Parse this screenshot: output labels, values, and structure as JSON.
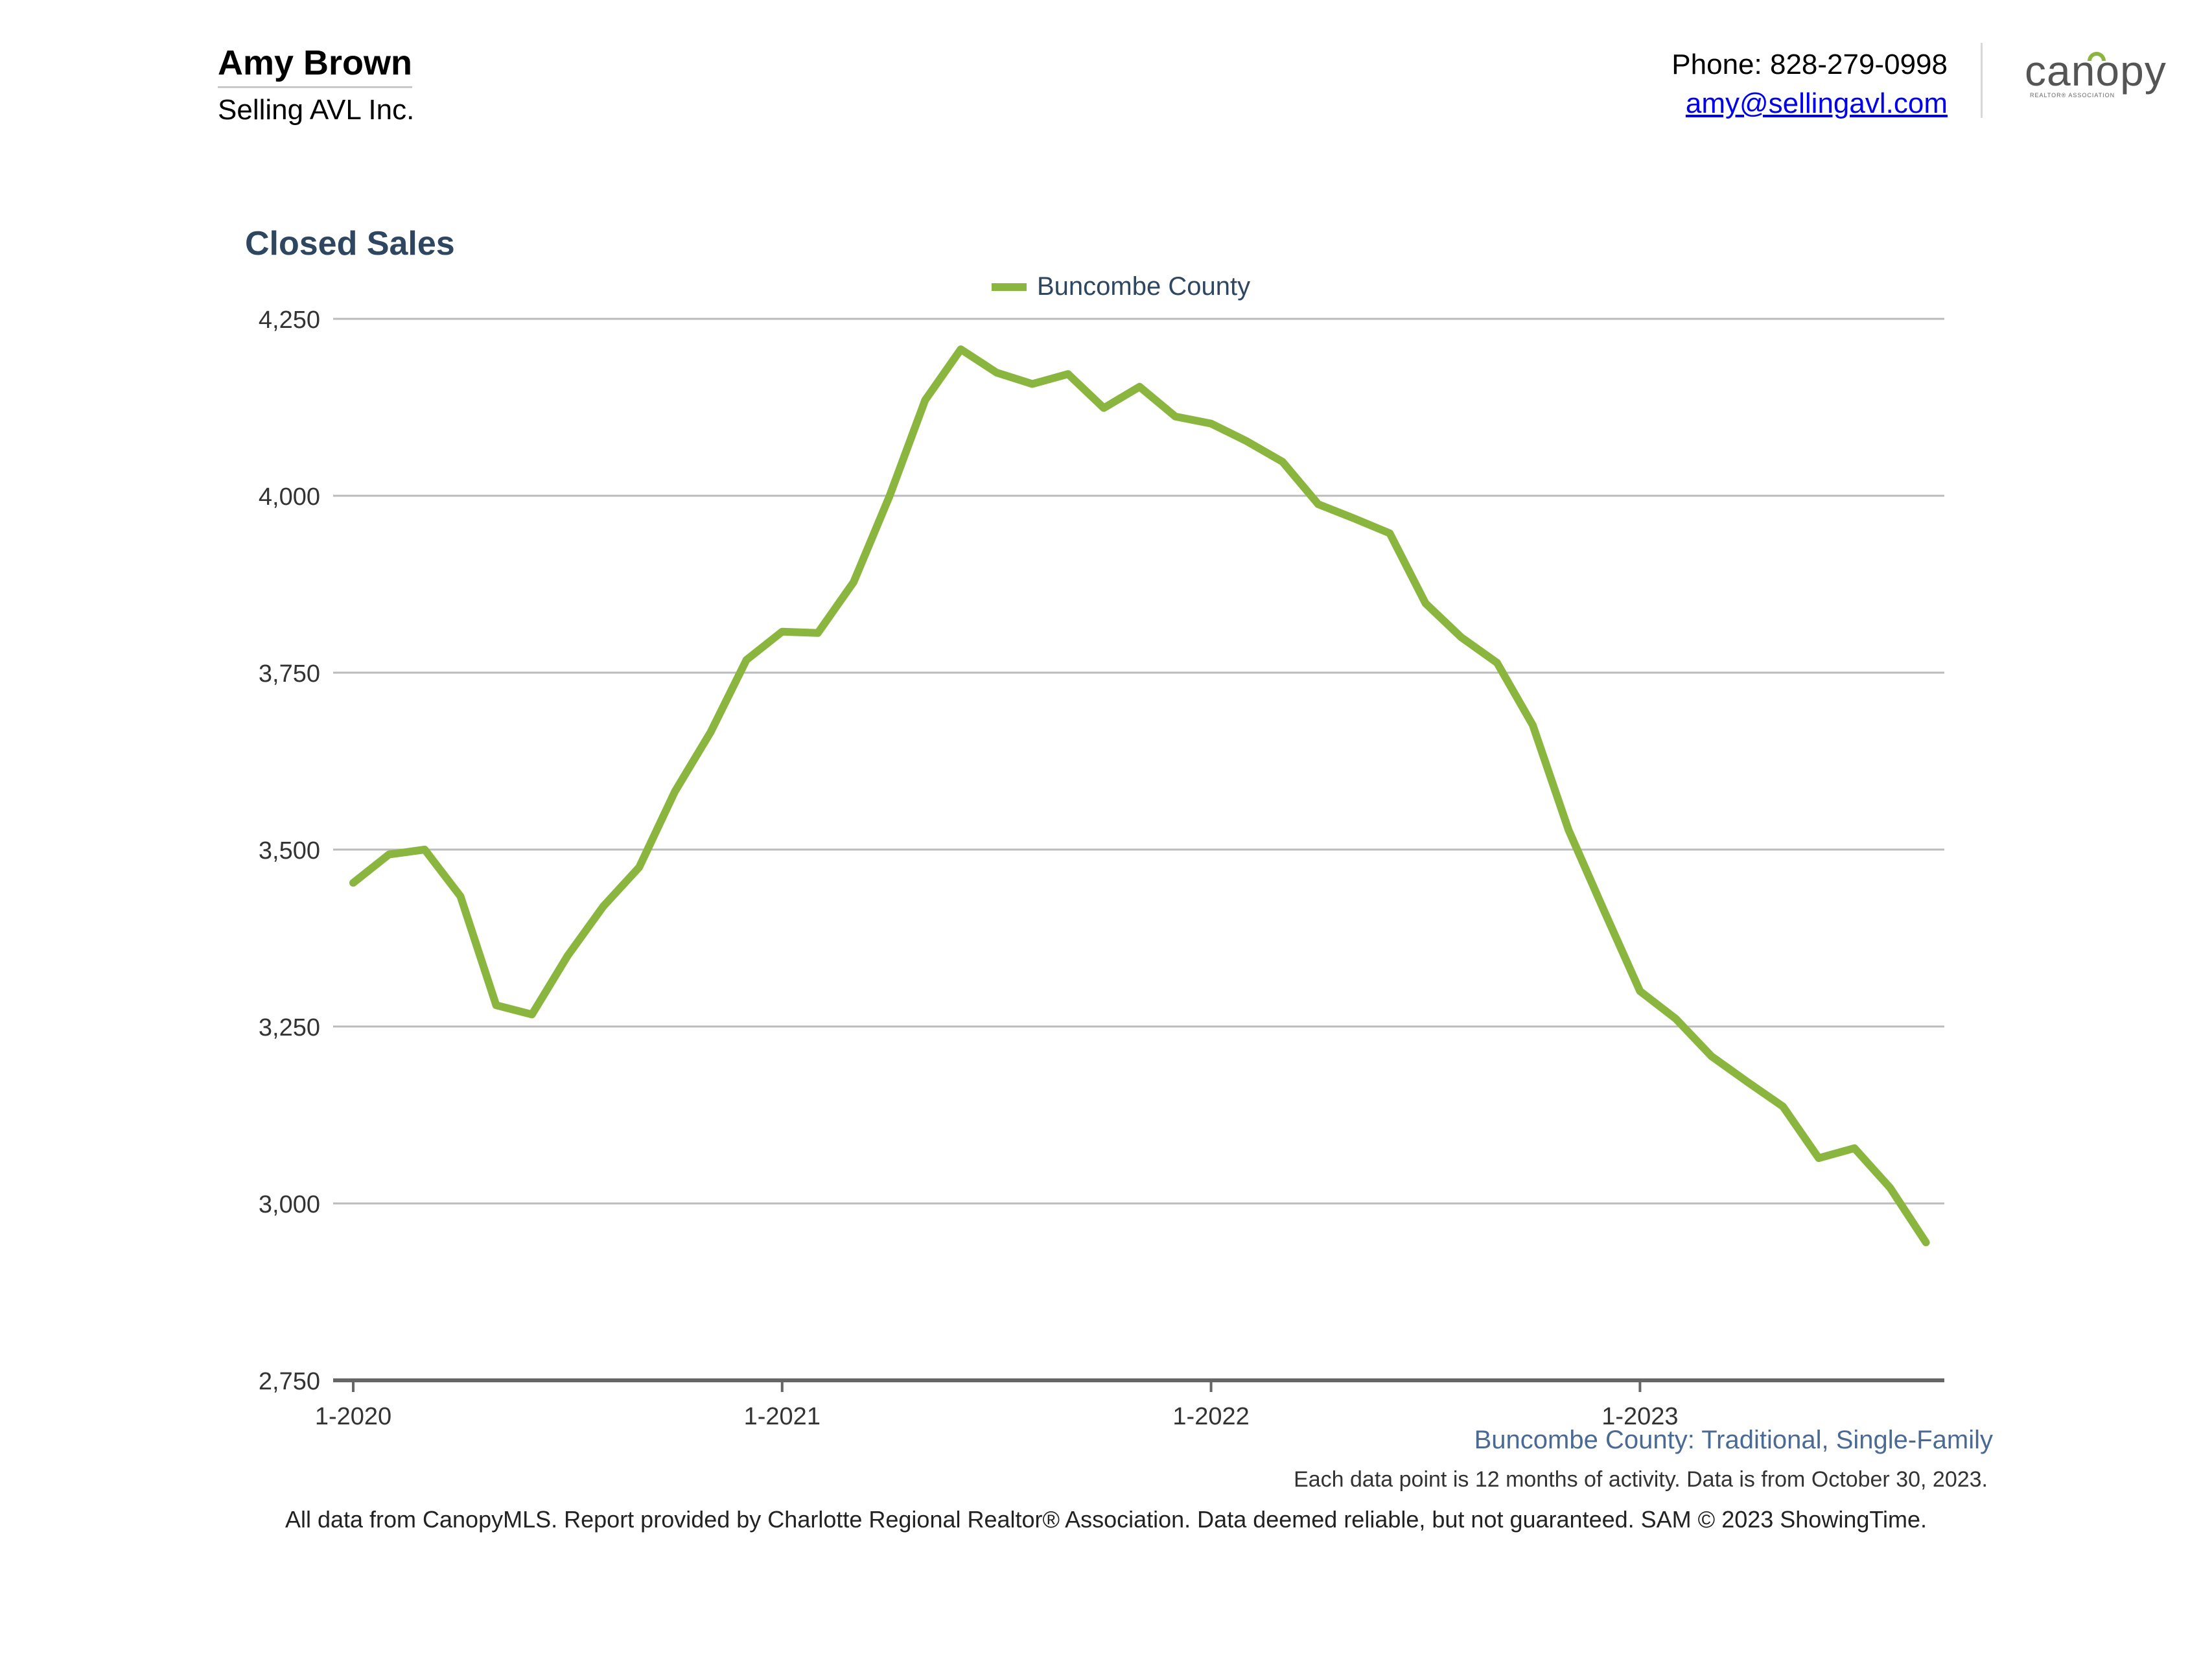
{
  "agent": {
    "name": "Amy Brown",
    "company": "Selling AVL Inc."
  },
  "contact": {
    "phone": "Phone: 828-279-0998",
    "email": "amy@sellingavl.com"
  },
  "logo": {
    "word": "canopy",
    "sub": "REALTOR® ASSOCIATION",
    "accent": "#8ab63f"
  },
  "chart_title": "Closed Sales",
  "legend_label": "Buncombe County",
  "subtitle": "Buncombe County: Traditional, Single-Family",
  "note": "Each data point is 12 months of activity. Data is from October 30, 2023.",
  "footer": "All data from CanopyMLS. Report provided by Charlotte Regional Realtor® Association. Data deemed reliable, but not guaranteed. SAM © 2023 ShowingTime.",
  "colors": {
    "line": "#8ab63f",
    "title": "#2e4660",
    "subtitle": "#4a6a93",
    "grid": "#bbbbbb",
    "axis": "#666666"
  },
  "chart_data": {
    "type": "line",
    "title": "Closed Sales",
    "xlabel": "",
    "ylabel": "",
    "ylim": [
      2750,
      4250
    ],
    "yticks": [
      2750,
      3000,
      3250,
      3500,
      3750,
      4000,
      4250
    ],
    "ytick_labels": [
      "2,750",
      "3,000",
      "3,250",
      "3,500",
      "3,750",
      "4,000",
      "4,250"
    ],
    "xtick_labels": [
      "1-2020",
      "1-2021",
      "1-2022",
      "1-2023"
    ],
    "xtick_months": [
      "2020-01",
      "2021-01",
      "2022-01",
      "2023-01"
    ],
    "grid": true,
    "legend_position": "top-center",
    "series": [
      {
        "name": "Buncombe County",
        "x": [
          "2020-01",
          "2020-02",
          "2020-03",
          "2020-04",
          "2020-05",
          "2020-06",
          "2020-07",
          "2020-08",
          "2020-09",
          "2020-10",
          "2020-11",
          "2020-12",
          "2021-01",
          "2021-02",
          "2021-03",
          "2021-04",
          "2021-05",
          "2021-06",
          "2021-07",
          "2021-08",
          "2021-09",
          "2021-10",
          "2021-11",
          "2021-12",
          "2022-01",
          "2022-02",
          "2022-03",
          "2022-04",
          "2022-05",
          "2022-06",
          "2022-07",
          "2022-08",
          "2022-09",
          "2022-10",
          "2022-11",
          "2022-12",
          "2023-01",
          "2023-02",
          "2023-03",
          "2023-04",
          "2023-05",
          "2023-06",
          "2023-07",
          "2023-08",
          "2023-09"
        ],
        "values": [
          3453,
          3493,
          3500,
          3434,
          3280,
          3267,
          3350,
          3420,
          3475,
          3582,
          3666,
          3768,
          3808,
          3806,
          3878,
          3999,
          4135,
          4207,
          4174,
          4158,
          4172,
          4124,
          4154,
          4112,
          4102,
          4077,
          4048,
          3988,
          3968,
          3947,
          3848,
          3800,
          3764,
          3676,
          3528,
          3413,
          3300,
          3261,
          3208,
          3172,
          3137,
          3064,
          3078,
          3022,
          2945
        ]
      }
    ]
  }
}
